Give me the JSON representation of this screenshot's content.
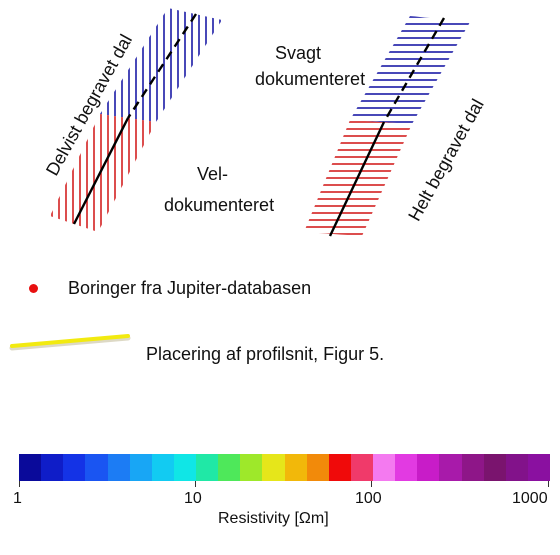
{
  "labels": {
    "left_valley": "Delvist begravet dal",
    "right_valley": "Helt begravet dal",
    "weak_line1": "Svagt",
    "weak_line2": "dokumenteret",
    "well_line1": "Vel-",
    "well_line2": "dokumenteret"
  },
  "legend": {
    "boreholes": "Boringer fra Jupiter-databasen",
    "profile": "Placering af profilsnit, Figur 5."
  },
  "colorbar": {
    "label": "Resistivity [Ωm]",
    "ticks": [
      "1",
      "10",
      "100",
      "1000"
    ],
    "colors": [
      "#0a0a9a",
      "#0f1dc8",
      "#1433e6",
      "#1a55f2",
      "#1c7cf4",
      "#18a6f5",
      "#12cbf2",
      "#10e6e6",
      "#20e8a6",
      "#4ee85a",
      "#9ee82a",
      "#e6e61a",
      "#f2b80a",
      "#f28a0a",
      "#f00a0a",
      "#f03a6a",
      "#f47af0",
      "#e23ae2",
      "#c81cc8",
      "#a81aaa",
      "#8e1688",
      "#7a146e",
      "#82128a",
      "#8a10a0"
    ]
  },
  "colors": {
    "hatch_blue": "#1a1aa6",
    "hatch_red": "#d42020",
    "borehole_dot": "#e81010",
    "profile_line": "#f2ea10"
  }
}
